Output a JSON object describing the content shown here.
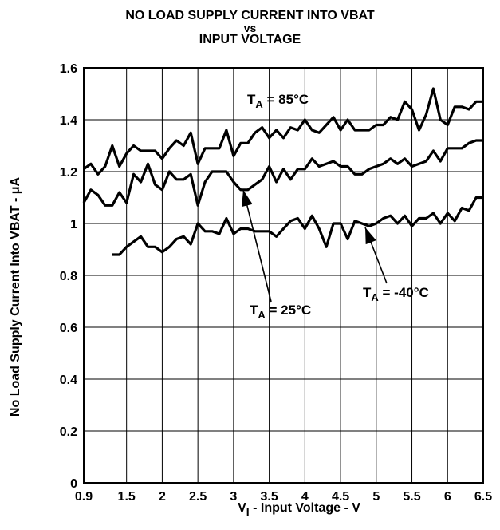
{
  "title_lines": [
    "NO LOAD SUPPLY CURRENT INTO VBAT",
    "vs",
    "INPUT VOLTAGE"
  ],
  "chart_data": {
    "type": "line",
    "title": "NO LOAD SUPPLY CURRENT INTO VBAT vs INPUT VOLTAGE",
    "xlabel": "V",
    "xlabel_sub": "I",
    "xlabel_rest": " - Input Voltage - V",
    "ylabel": "No Load Supply Current Into VBAT -  μA",
    "xlim": [
      0.9,
      6.5
    ],
    "ylim": [
      0,
      1.6
    ],
    "x_ticks": [
      "0.9",
      "1.5",
      "2",
      "2.5",
      "3",
      "3.5",
      "4",
      "4.5",
      "5",
      "5.5",
      "6",
      "6.5"
    ],
    "x_tick_values": [
      0.9,
      1.5,
      2,
      2.5,
      3,
      3.5,
      4,
      4.5,
      5,
      5.5,
      6,
      6.5
    ],
    "y_ticks": [
      "0",
      "0.2",
      "0.4",
      "0.6",
      "0.8",
      "1",
      "1.2",
      "1.4",
      "1.6"
    ],
    "y_tick_values": [
      0,
      0.2,
      0.4,
      0.6,
      0.8,
      1.0,
      1.2,
      1.4,
      1.6
    ],
    "grid": true,
    "series": [
      {
        "name": "T_A = 85°C",
        "label_main": "T",
        "label_sub": "A",
        "label_rest": " = 85°C",
        "x": [
          0.9,
          1.0,
          1.1,
          1.2,
          1.3,
          1.4,
          1.5,
          1.6,
          1.7,
          1.8,
          1.9,
          2.0,
          2.1,
          2.2,
          2.3,
          2.4,
          2.5,
          2.6,
          2.7,
          2.8,
          2.9,
          3.0,
          3.1,
          3.2,
          3.3,
          3.4,
          3.5,
          3.6,
          3.7,
          3.8,
          3.9,
          4.0,
          4.1,
          4.2,
          4.3,
          4.4,
          4.5,
          4.6,
          4.7,
          4.8,
          4.9,
          5.0,
          5.1,
          5.2,
          5.3,
          5.4,
          5.5,
          5.6,
          5.7,
          5.8,
          5.9,
          6.0,
          6.1,
          6.2,
          6.3,
          6.4,
          6.5
        ],
        "y": [
          1.21,
          1.23,
          1.19,
          1.22,
          1.3,
          1.22,
          1.27,
          1.3,
          1.28,
          1.28,
          1.28,
          1.25,
          1.29,
          1.32,
          1.3,
          1.35,
          1.23,
          1.29,
          1.29,
          1.29,
          1.36,
          1.26,
          1.31,
          1.31,
          1.35,
          1.37,
          1.33,
          1.36,
          1.33,
          1.37,
          1.36,
          1.4,
          1.36,
          1.35,
          1.38,
          1.41,
          1.36,
          1.4,
          1.36,
          1.36,
          1.36,
          1.38,
          1.38,
          1.41,
          1.4,
          1.47,
          1.44,
          1.36,
          1.42,
          1.52,
          1.4,
          1.38,
          1.45,
          1.45,
          1.44,
          1.47,
          1.47
        ]
      },
      {
        "name": "T_A = 25°C",
        "label_main": "T",
        "label_sub": "A",
        "label_rest": " = 25°C",
        "x": [
          0.9,
          1.0,
          1.1,
          1.2,
          1.3,
          1.4,
          1.5,
          1.6,
          1.7,
          1.8,
          1.9,
          2.0,
          2.1,
          2.2,
          2.3,
          2.4,
          2.5,
          2.6,
          2.7,
          2.8,
          2.9,
          3.0,
          3.1,
          3.2,
          3.3,
          3.4,
          3.5,
          3.6,
          3.7,
          3.8,
          3.9,
          4.0,
          4.1,
          4.2,
          4.3,
          4.4,
          4.5,
          4.6,
          4.7,
          4.8,
          4.9,
          5.0,
          5.1,
          5.2,
          5.3,
          5.4,
          5.5,
          5.6,
          5.7,
          5.8,
          5.9,
          6.0,
          6.1,
          6.2,
          6.3,
          6.4,
          6.5
        ],
        "y": [
          1.08,
          1.13,
          1.11,
          1.07,
          1.07,
          1.12,
          1.08,
          1.19,
          1.16,
          1.23,
          1.15,
          1.13,
          1.2,
          1.17,
          1.17,
          1.19,
          1.07,
          1.16,
          1.2,
          1.2,
          1.2,
          1.16,
          1.13,
          1.13,
          1.15,
          1.17,
          1.22,
          1.16,
          1.21,
          1.17,
          1.21,
          1.21,
          1.25,
          1.22,
          1.23,
          1.24,
          1.22,
          1.22,
          1.19,
          1.19,
          1.21,
          1.22,
          1.23,
          1.25,
          1.23,
          1.25,
          1.22,
          1.23,
          1.24,
          1.28,
          1.24,
          1.29,
          1.29,
          1.29,
          1.31,
          1.32,
          1.32
        ]
      },
      {
        "name": "T_A = -40°C",
        "label_main": "T",
        "label_sub": "A",
        "label_rest": " = -40°C",
        "x": [
          1.3,
          1.4,
          1.5,
          1.6,
          1.7,
          1.8,
          1.9,
          2.0,
          2.1,
          2.2,
          2.3,
          2.4,
          2.5,
          2.6,
          2.7,
          2.8,
          2.9,
          3.0,
          3.1,
          3.2,
          3.3,
          3.4,
          3.5,
          3.6,
          3.7,
          3.8,
          3.9,
          4.0,
          4.1,
          4.2,
          4.3,
          4.4,
          4.5,
          4.6,
          4.7,
          4.8,
          4.9,
          5.0,
          5.1,
          5.2,
          5.3,
          5.4,
          5.5,
          5.6,
          5.7,
          5.8,
          5.9,
          6.0,
          6.1,
          6.2,
          6.3,
          6.4,
          6.5
        ],
        "y": [
          0.88,
          0.88,
          0.91,
          0.93,
          0.95,
          0.91,
          0.91,
          0.89,
          0.91,
          0.94,
          0.95,
          0.92,
          1.0,
          0.97,
          0.97,
          0.96,
          1.02,
          0.96,
          0.98,
          0.98,
          0.97,
          0.97,
          0.97,
          0.95,
          0.98,
          1.01,
          1.02,
          0.98,
          1.03,
          0.98,
          0.91,
          1.0,
          1.0,
          0.94,
          1.01,
          1.0,
          0.99,
          1.0,
          1.02,
          1.03,
          1.0,
          1.03,
          0.99,
          1.02,
          1.02,
          1.04,
          1.0,
          1.04,
          1.01,
          1.06,
          1.05,
          1.1,
          1.1
        ]
      }
    ]
  }
}
